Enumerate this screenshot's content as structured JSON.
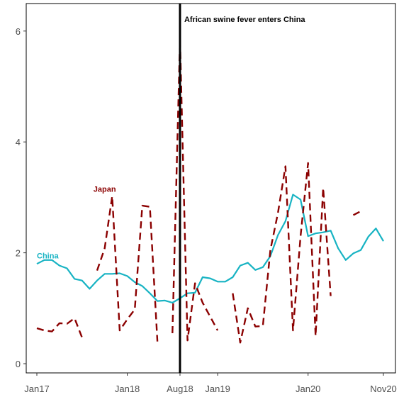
{
  "chart_data": {
    "type": "line",
    "title": "",
    "xlabel": "",
    "ylabel": "",
    "ylim": [
      -0.15,
      6.5
    ],
    "yticks": [
      0,
      2,
      4,
      6
    ],
    "xticks": [
      {
        "label": "Jan17",
        "value": "2017-01"
      },
      {
        "label": "Jan18",
        "value": "2018-01"
      },
      {
        "label": "Aug18",
        "value": "2018-08"
      },
      {
        "label": "Jan19",
        "value": "2019-01"
      },
      {
        "label": "Jan20",
        "value": "2020-01"
      },
      {
        "label": "Nov20",
        "value": "2020-11"
      }
    ],
    "grid": false,
    "event": {
      "x": "2018-08",
      "label": "African swine fever enters China",
      "color": "#000000"
    },
    "series": [
      {
        "name": "China",
        "color": "#17b3c3",
        "style": "solid",
        "label_at": {
          "x": "2017-01",
          "y": 1.9
        },
        "points": [
          [
            "2017-01",
            1.8
          ],
          [
            "2017-02",
            1.87
          ],
          [
            "2017-03",
            1.87
          ],
          [
            "2017-04",
            1.77
          ],
          [
            "2017-05",
            1.72
          ],
          [
            "2017-06",
            1.53
          ],
          [
            "2017-07",
            1.5
          ],
          [
            "2017-08",
            1.35
          ],
          [
            "2017-09",
            1.5
          ],
          [
            "2017-10",
            1.62
          ],
          [
            "2017-11",
            1.62
          ],
          [
            "2017-12",
            1.63
          ],
          [
            "2018-01",
            1.58
          ],
          [
            "2018-02",
            1.47
          ],
          [
            "2018-03",
            1.4
          ],
          [
            "2018-04",
            1.27
          ],
          [
            "2018-05",
            1.13
          ],
          [
            "2018-06",
            1.14
          ],
          [
            "2018-07",
            1.1
          ],
          [
            "2018-08",
            1.18
          ],
          [
            "2018-09",
            1.27
          ],
          [
            "2018-10",
            1.28
          ],
          [
            "2018-11",
            1.56
          ],
          [
            "2018-12",
            1.54
          ],
          [
            "2019-01",
            1.48
          ],
          [
            "2019-02",
            1.48
          ],
          [
            "2019-03",
            1.56
          ],
          [
            "2019-04",
            1.77
          ],
          [
            "2019-05",
            1.82
          ],
          [
            "2019-06",
            1.69
          ],
          [
            "2019-07",
            1.74
          ],
          [
            "2019-08",
            1.94
          ],
          [
            "2019-09",
            2.32
          ],
          [
            "2019-10",
            2.57
          ],
          [
            "2019-11",
            3.05
          ],
          [
            "2019-12",
            2.96
          ],
          [
            "2020-01",
            2.3
          ],
          [
            "2020-02",
            2.35
          ],
          [
            "2020-03",
            2.37
          ],
          [
            "2020-04",
            2.4
          ],
          [
            "2020-05",
            2.08
          ],
          [
            "2020-06",
            1.87
          ],
          [
            "2020-07",
            1.99
          ],
          [
            "2020-08",
            2.05
          ],
          [
            "2020-09",
            2.29
          ],
          [
            "2020-10",
            2.44
          ],
          [
            "2020-11",
            2.21
          ]
        ]
      },
      {
        "name": "Japan",
        "color": "#8b0000",
        "style": "dashed",
        "label_at": {
          "x": "2017-10",
          "y": 3.1
        },
        "points": [
          [
            "2017-01",
            0.64
          ],
          [
            "2017-02",
            0.6
          ],
          [
            "2017-03",
            0.58
          ],
          [
            "2017-04",
            0.73
          ],
          [
            "2017-05",
            0.72
          ],
          [
            "2017-06",
            0.82
          ],
          [
            "2017-07",
            0.47
          ],
          [
            "2017-08",
            null
          ],
          [
            "2017-09",
            1.68
          ],
          [
            "2017-10",
            2.08
          ],
          [
            "2017-11",
            3.02
          ],
          [
            "2017-12",
            0.6
          ],
          [
            "2018-01",
            0.8
          ],
          [
            "2018-02",
            0.98
          ],
          [
            "2018-03",
            2.85
          ],
          [
            "2018-04",
            2.83
          ],
          [
            "2018-05",
            0.4
          ],
          [
            "2018-06",
            null
          ],
          [
            "2018-07",
            0.55
          ],
          [
            "2018-08",
            5.85
          ],
          [
            "2018-09",
            0.42
          ],
          [
            "2018-10",
            1.45
          ],
          [
            "2018-11",
            1.1
          ],
          [
            "2018-12",
            0.85
          ],
          [
            "2019-01",
            0.6
          ],
          [
            "2019-02",
            null
          ],
          [
            "2019-03",
            1.27
          ],
          [
            "2019-04",
            0.38
          ],
          [
            "2019-05",
            1.0
          ],
          [
            "2019-06",
            0.67
          ],
          [
            "2019-07",
            0.68
          ],
          [
            "2019-08",
            2.05
          ],
          [
            "2019-09",
            2.72
          ],
          [
            "2019-10",
            3.56
          ],
          [
            "2019-11",
            0.6
          ],
          [
            "2019-12",
            2.3
          ],
          [
            "2020-01",
            3.62
          ],
          [
            "2020-02",
            0.5
          ],
          [
            "2020-03",
            3.17
          ],
          [
            "2020-04",
            1.22
          ],
          [
            "2020-05",
            null
          ],
          [
            "2020-06",
            null
          ],
          [
            "2020-07",
            2.68
          ],
          [
            "2020-08",
            2.75
          ]
        ]
      }
    ]
  }
}
